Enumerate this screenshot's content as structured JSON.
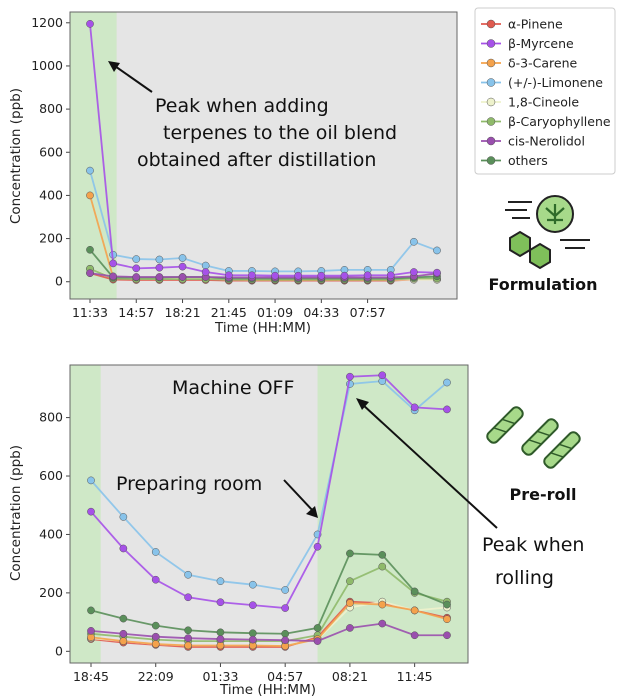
{
  "colors": {
    "alpha_pinene": "#e05a4f",
    "beta_myrcene": "#a651e8",
    "delta3_carene": "#f4a24c",
    "limonene": "#88c3ea",
    "cineole": "#eef2cc",
    "caryophyllene": "#8fba6a",
    "nerolidol": "#9a4fae",
    "others": "#5a8f5a",
    "plot_bg": "#e5e5e5",
    "highlight": "#cfe8c7",
    "icon_green": "#7fbf5a"
  },
  "legend": [
    "α-Pinene",
    "β-Myrcene",
    "δ-3-Carene",
    "(+/-)-Limonene",
    "1,8-Cineole",
    "β-Caryophyllene",
    "cis-Nerolidol",
    "others"
  ],
  "side_labels": {
    "top": "Formulation",
    "bottom": "Pre-roll"
  },
  "icons": {
    "top": "cannabis-molecule-icon",
    "bottom": "pre-roll-joints-icon"
  },
  "chart_data": [
    {
      "type": "line",
      "xlabel": "Time (HH:MM)",
      "ylabel": "Concentration (ppb)",
      "x_tick_labels": [
        "11:33",
        "14:57",
        "18:21",
        "21:45",
        "01:09",
        "04:33",
        "07:57"
      ],
      "y_ticks": [
        0,
        200,
        400,
        600,
        800,
        1000,
        1200
      ],
      "ylim": [
        -80,
        1250
      ],
      "n_points": 16,
      "highlight_region": [
        0,
        1.15
      ],
      "annotations": [
        "Peak when adding",
        "terpenes to the oil blend",
        "obtained after distillation"
      ],
      "series": [
        {
          "name": "α-Pinene",
          "color_key": "alpha_pinene",
          "values": [
            40,
            10,
            8,
            8,
            8,
            8,
            5,
            5,
            5,
            5,
            5,
            5,
            5,
            5,
            10,
            10
          ]
        },
        {
          "name": "δ-3-Carene",
          "color_key": "delta3_carene",
          "values": [
            400,
            20,
            15,
            15,
            15,
            15,
            10,
            8,
            8,
            8,
            8,
            8,
            8,
            8,
            10,
            10
          ]
        },
        {
          "name": "(+/-)-Limonene",
          "color_key": "limonene",
          "values": [
            515,
            125,
            105,
            103,
            110,
            75,
            50,
            50,
            48,
            48,
            50,
            55,
            55,
            55,
            185,
            145
          ]
        },
        {
          "name": "1,8-Cineole",
          "color_key": "cineole",
          "values": [
            60,
            20,
            15,
            15,
            15,
            15,
            10,
            10,
            10,
            10,
            10,
            10,
            10,
            10,
            10,
            10
          ]
        },
        {
          "name": "β-Caryophyllene",
          "color_key": "caryophyllene",
          "values": [
            60,
            15,
            12,
            12,
            12,
            12,
            10,
            10,
            10,
            10,
            10,
            10,
            10,
            10,
            15,
            15
          ]
        },
        {
          "name": "others",
          "color_key": "others",
          "values": [
            148,
            20,
            20,
            20,
            22,
            22,
            15,
            15,
            15,
            15,
            15,
            15,
            15,
            15,
            20,
            25
          ]
        },
        {
          "name": "cis-Nerolidol",
          "color_key": "nerolidol",
          "values": [
            40,
            25,
            22,
            22,
            22,
            22,
            20,
            20,
            20,
            20,
            20,
            20,
            20,
            20,
            25,
            38
          ]
        },
        {
          "name": "β-Myrcene",
          "color_key": "beta_myrcene",
          "values": [
            1195,
            85,
            62,
            65,
            70,
            45,
            30,
            30,
            28,
            28,
            28,
            28,
            30,
            30,
            45,
            42
          ]
        }
      ]
    },
    {
      "type": "line",
      "xlabel": "Time (HH:MM)",
      "ylabel": "Concentration (ppb)",
      "x_tick_labels": [
        "18:45",
        "22:09",
        "01:33",
        "04:57",
        "08:21",
        "11:45"
      ],
      "y_ticks": [
        0,
        200,
        400,
        600,
        800
      ],
      "ylim": [
        -40,
        980
      ],
      "n_points": 12,
      "highlight_regions": [
        [
          -0.3,
          0.3
        ],
        [
          7.0,
          11.3
        ]
      ],
      "annotations": [
        "Machine OFF",
        "Preparing room",
        "Peak when",
        "rolling"
      ],
      "series": [
        {
          "name": "α-Pinene",
          "color_key": "alpha_pinene",
          "values": [
            42,
            30,
            22,
            15,
            15,
            15,
            15,
            48,
            170,
            165,
            140,
            115
          ]
        },
        {
          "name": "1,8-Cineole",
          "color_key": "cineole",
          "values": [
            45,
            35,
            25,
            20,
            20,
            20,
            20,
            40,
            150,
            170,
            140,
            150
          ]
        },
        {
          "name": "β-Caryophyllene",
          "color_key": "caryophyllene",
          "values": [
            60,
            50,
            40,
            35,
            35,
            35,
            35,
            55,
            240,
            290,
            200,
            170
          ]
        },
        {
          "name": "others",
          "color_key": "others",
          "values": [
            140,
            112,
            88,
            72,
            65,
            62,
            60,
            80,
            335,
            330,
            205,
            160
          ]
        },
        {
          "name": "δ-3-Carene",
          "color_key": "delta3_carene",
          "values": [
            48,
            35,
            25,
            20,
            20,
            20,
            18,
            42,
            165,
            160,
            140,
            110
          ]
        },
        {
          "name": "cis-Nerolidol",
          "color_key": "nerolidol",
          "values": [
            70,
            60,
            50,
            45,
            42,
            40,
            38,
            35,
            80,
            95,
            55,
            55
          ]
        },
        {
          "name": "(+/-)-Limonene",
          "color_key": "limonene",
          "values": [
            585,
            460,
            340,
            262,
            240,
            228,
            210,
            400,
            915,
            925,
            825,
            920
          ]
        },
        {
          "name": "β-Myrcene",
          "color_key": "beta_myrcene",
          "values": [
            478,
            352,
            245,
            185,
            168,
            158,
            148,
            358,
            940,
            945,
            835,
            828
          ]
        }
      ]
    }
  ]
}
